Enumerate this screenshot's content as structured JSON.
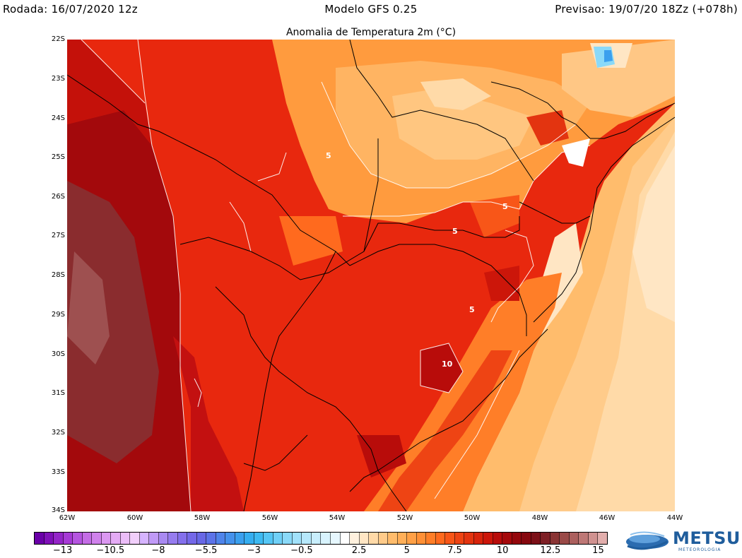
{
  "header": {
    "run_label": "Rodada: 16/07/2020 12z",
    "model_label": "Modelo GFS 0.25",
    "forecast_label": "Previsao: 19/07/20 18Zz (+078h)"
  },
  "map": {
    "title": "Anomalia de Temperatura 2m (°C)",
    "lat_labels": [
      "22S",
      "23S",
      "24S",
      "25S",
      "26S",
      "27S",
      "28S",
      "29S",
      "30S",
      "31S",
      "32S",
      "33S",
      "34S"
    ],
    "lon_labels": [
      "62W",
      "60W",
      "58W",
      "56W",
      "54W",
      "52W",
      "50W",
      "48W",
      "46W",
      "44W"
    ],
    "contour_labels": [
      "5",
      "5",
      "5",
      "5",
      "10"
    ],
    "region": {
      "lat_range": [
        -34,
        -22
      ],
      "lon_range": [
        -62,
        -44
      ]
    }
  },
  "colorbar": {
    "min": -14.5,
    "max": 15.5,
    "step": 0.5,
    "tick_labels": [
      "-13",
      "-10.5",
      "-8",
      "-5.5",
      "-3",
      "-0.5",
      "2.5",
      "5",
      "7.5",
      "10",
      "12.5",
      "15"
    ],
    "colors": [
      "#6a00a8",
      "#7f10b8",
      "#9425c8",
      "#a63ad6",
      "#b555e0",
      "#c46de6",
      "#d082ec",
      "#db98f1",
      "#e4abf5",
      "#ebbdf8",
      "#f1cffb",
      "#d6b4ff",
      "#c09af7",
      "#a98af2",
      "#967cef",
      "#8470ec",
      "#7468e8",
      "#6868e6",
      "#5c73e8",
      "#4f84ea",
      "#4592ec",
      "#3ba0ee",
      "#35aef0",
      "#3dbaf2",
      "#55c6f5",
      "#70d0f7",
      "#8ad9f8",
      "#a1e1fa",
      "#b6e8fb",
      "#c8eefc",
      "#d8f3fd",
      "#e6f7fe",
      "#ffffff",
      "#fff1de",
      "#ffe6c4",
      "#ffdaa8",
      "#ffcb8a",
      "#ffbc6c",
      "#ffaf58",
      "#ffa046",
      "#ff9036",
      "#ff7e28",
      "#ff6a1e",
      "#f85618",
      "#ee4414",
      "#e33410",
      "#d8240c",
      "#cc160a",
      "#b80c0a",
      "#a5090b",
      "#94070c",
      "#86080f",
      "#7c1018",
      "#7e2026",
      "#8a3434",
      "#9a4a48",
      "#ac605e",
      "#be7876",
      "#d09290",
      "#e2aeac"
    ]
  },
  "brand": {
    "name": "METSUL",
    "tagline": "METEOROLOGIA"
  }
}
